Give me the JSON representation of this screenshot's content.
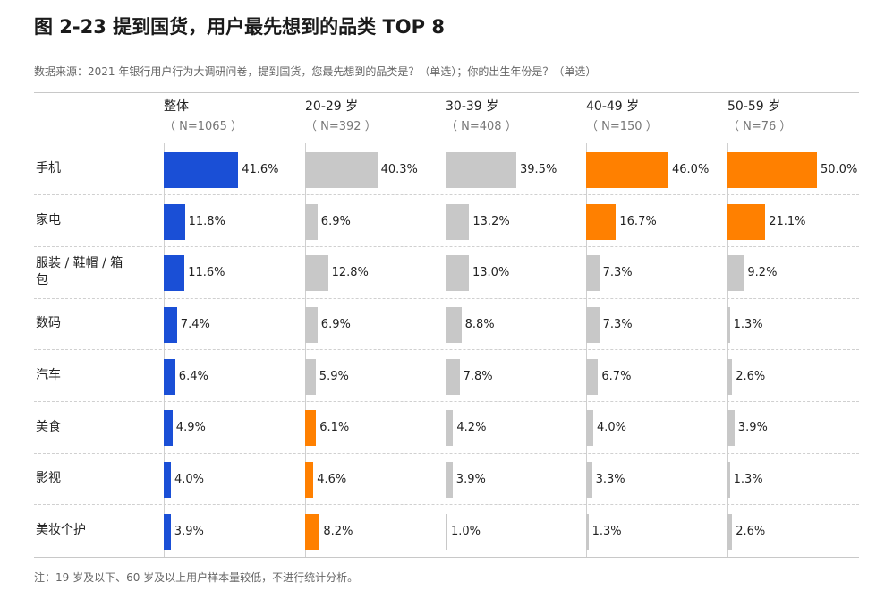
{
  "title": "图 2-23  提到国货，用户最先想到的品类 TOP 8",
  "source": "数据来源：2021 年银行用户行为大调研问卷，提到国货，您最先想到的品类是？（单选）；你的出生年份是？（单选）",
  "footnote": "注：19 岁及以下、60 岁及以上用户样本量较低，不进行统计分析。",
  "colors": {
    "overall": "#1a4fd6",
    "neutral": "#c8c8c8",
    "highlight": "#ff8000"
  },
  "chart_data": {
    "type": "bar",
    "categories": [
      "手机",
      "家电",
      "服装 / 鞋帽 / 箱包",
      "数码",
      "汽车",
      "美食",
      "影视",
      "美妆个护"
    ],
    "series": [
      {
        "name": "整体",
        "n": "（ N=1065 ）",
        "color": "#1a4fd6",
        "values": [
          41.6,
          11.8,
          11.6,
          7.4,
          6.4,
          4.9,
          4.0,
          3.9
        ],
        "labels": [
          "41.6%",
          "11.8%",
          "11.6%",
          "7.4%",
          "6.4%",
          "4.9%",
          "4.0%",
          "3.9%"
        ],
        "bar_colors": [
          "#1a4fd6",
          "#1a4fd6",
          "#1a4fd6",
          "#1a4fd6",
          "#1a4fd6",
          "#1a4fd6",
          "#1a4fd6",
          "#1a4fd6"
        ]
      },
      {
        "name": "20-29 岁",
        "n": "（ N=392 ）",
        "color": "#c8c8c8",
        "values": [
          40.3,
          6.9,
          12.8,
          6.9,
          5.9,
          6.1,
          4.6,
          8.2
        ],
        "labels": [
          "40.3%",
          "6.9%",
          "12.8%",
          "6.9%",
          "5.9%",
          "6.1%",
          "4.6%",
          "8.2%"
        ],
        "bar_colors": [
          "#c8c8c8",
          "#c8c8c8",
          "#c8c8c8",
          "#c8c8c8",
          "#c8c8c8",
          "#ff8000",
          "#ff8000",
          "#ff8000"
        ]
      },
      {
        "name": "30-39 岁",
        "n": "（ N=408 ）",
        "color": "#c8c8c8",
        "values": [
          39.5,
          13.2,
          13.0,
          8.8,
          7.8,
          4.2,
          3.9,
          1.0
        ],
        "labels": [
          "39.5%",
          "13.2%",
          "13.0%",
          "8.8%",
          "7.8%",
          "4.2%",
          "3.9%",
          "1.0%"
        ],
        "bar_colors": [
          "#c8c8c8",
          "#c8c8c8",
          "#c8c8c8",
          "#c8c8c8",
          "#c8c8c8",
          "#c8c8c8",
          "#c8c8c8",
          "#c8c8c8"
        ]
      },
      {
        "name": "40-49 岁",
        "n": "（ N=150 ）",
        "color": "#c8c8c8",
        "values": [
          46.0,
          16.7,
          7.3,
          7.3,
          6.7,
          4.0,
          3.3,
          1.3
        ],
        "labels": [
          "46.0%",
          "16.7%",
          "7.3%",
          "7.3%",
          "6.7%",
          "4.0%",
          "3.3%",
          "1.3%"
        ],
        "bar_colors": [
          "#ff8000",
          "#ff8000",
          "#c8c8c8",
          "#c8c8c8",
          "#c8c8c8",
          "#c8c8c8",
          "#c8c8c8",
          "#c8c8c8"
        ]
      },
      {
        "name": "50-59 岁",
        "n": "（ N=76 ）",
        "color": "#c8c8c8",
        "values": [
          50.0,
          21.1,
          9.2,
          1.3,
          2.6,
          3.9,
          1.3,
          2.6
        ],
        "labels": [
          "50.0%",
          "21.1%",
          "9.2%",
          "1.3%",
          "2.6%",
          "3.9%",
          "1.3%",
          "2.6%"
        ],
        "bar_colors": [
          "#ff8000",
          "#ff8000",
          "#c8c8c8",
          "#c8c8c8",
          "#c8c8c8",
          "#c8c8c8",
          "#c8c8c8",
          "#c8c8c8"
        ]
      }
    ],
    "xlim": [
      0,
      100
    ],
    "grid": false,
    "legend": "none"
  }
}
